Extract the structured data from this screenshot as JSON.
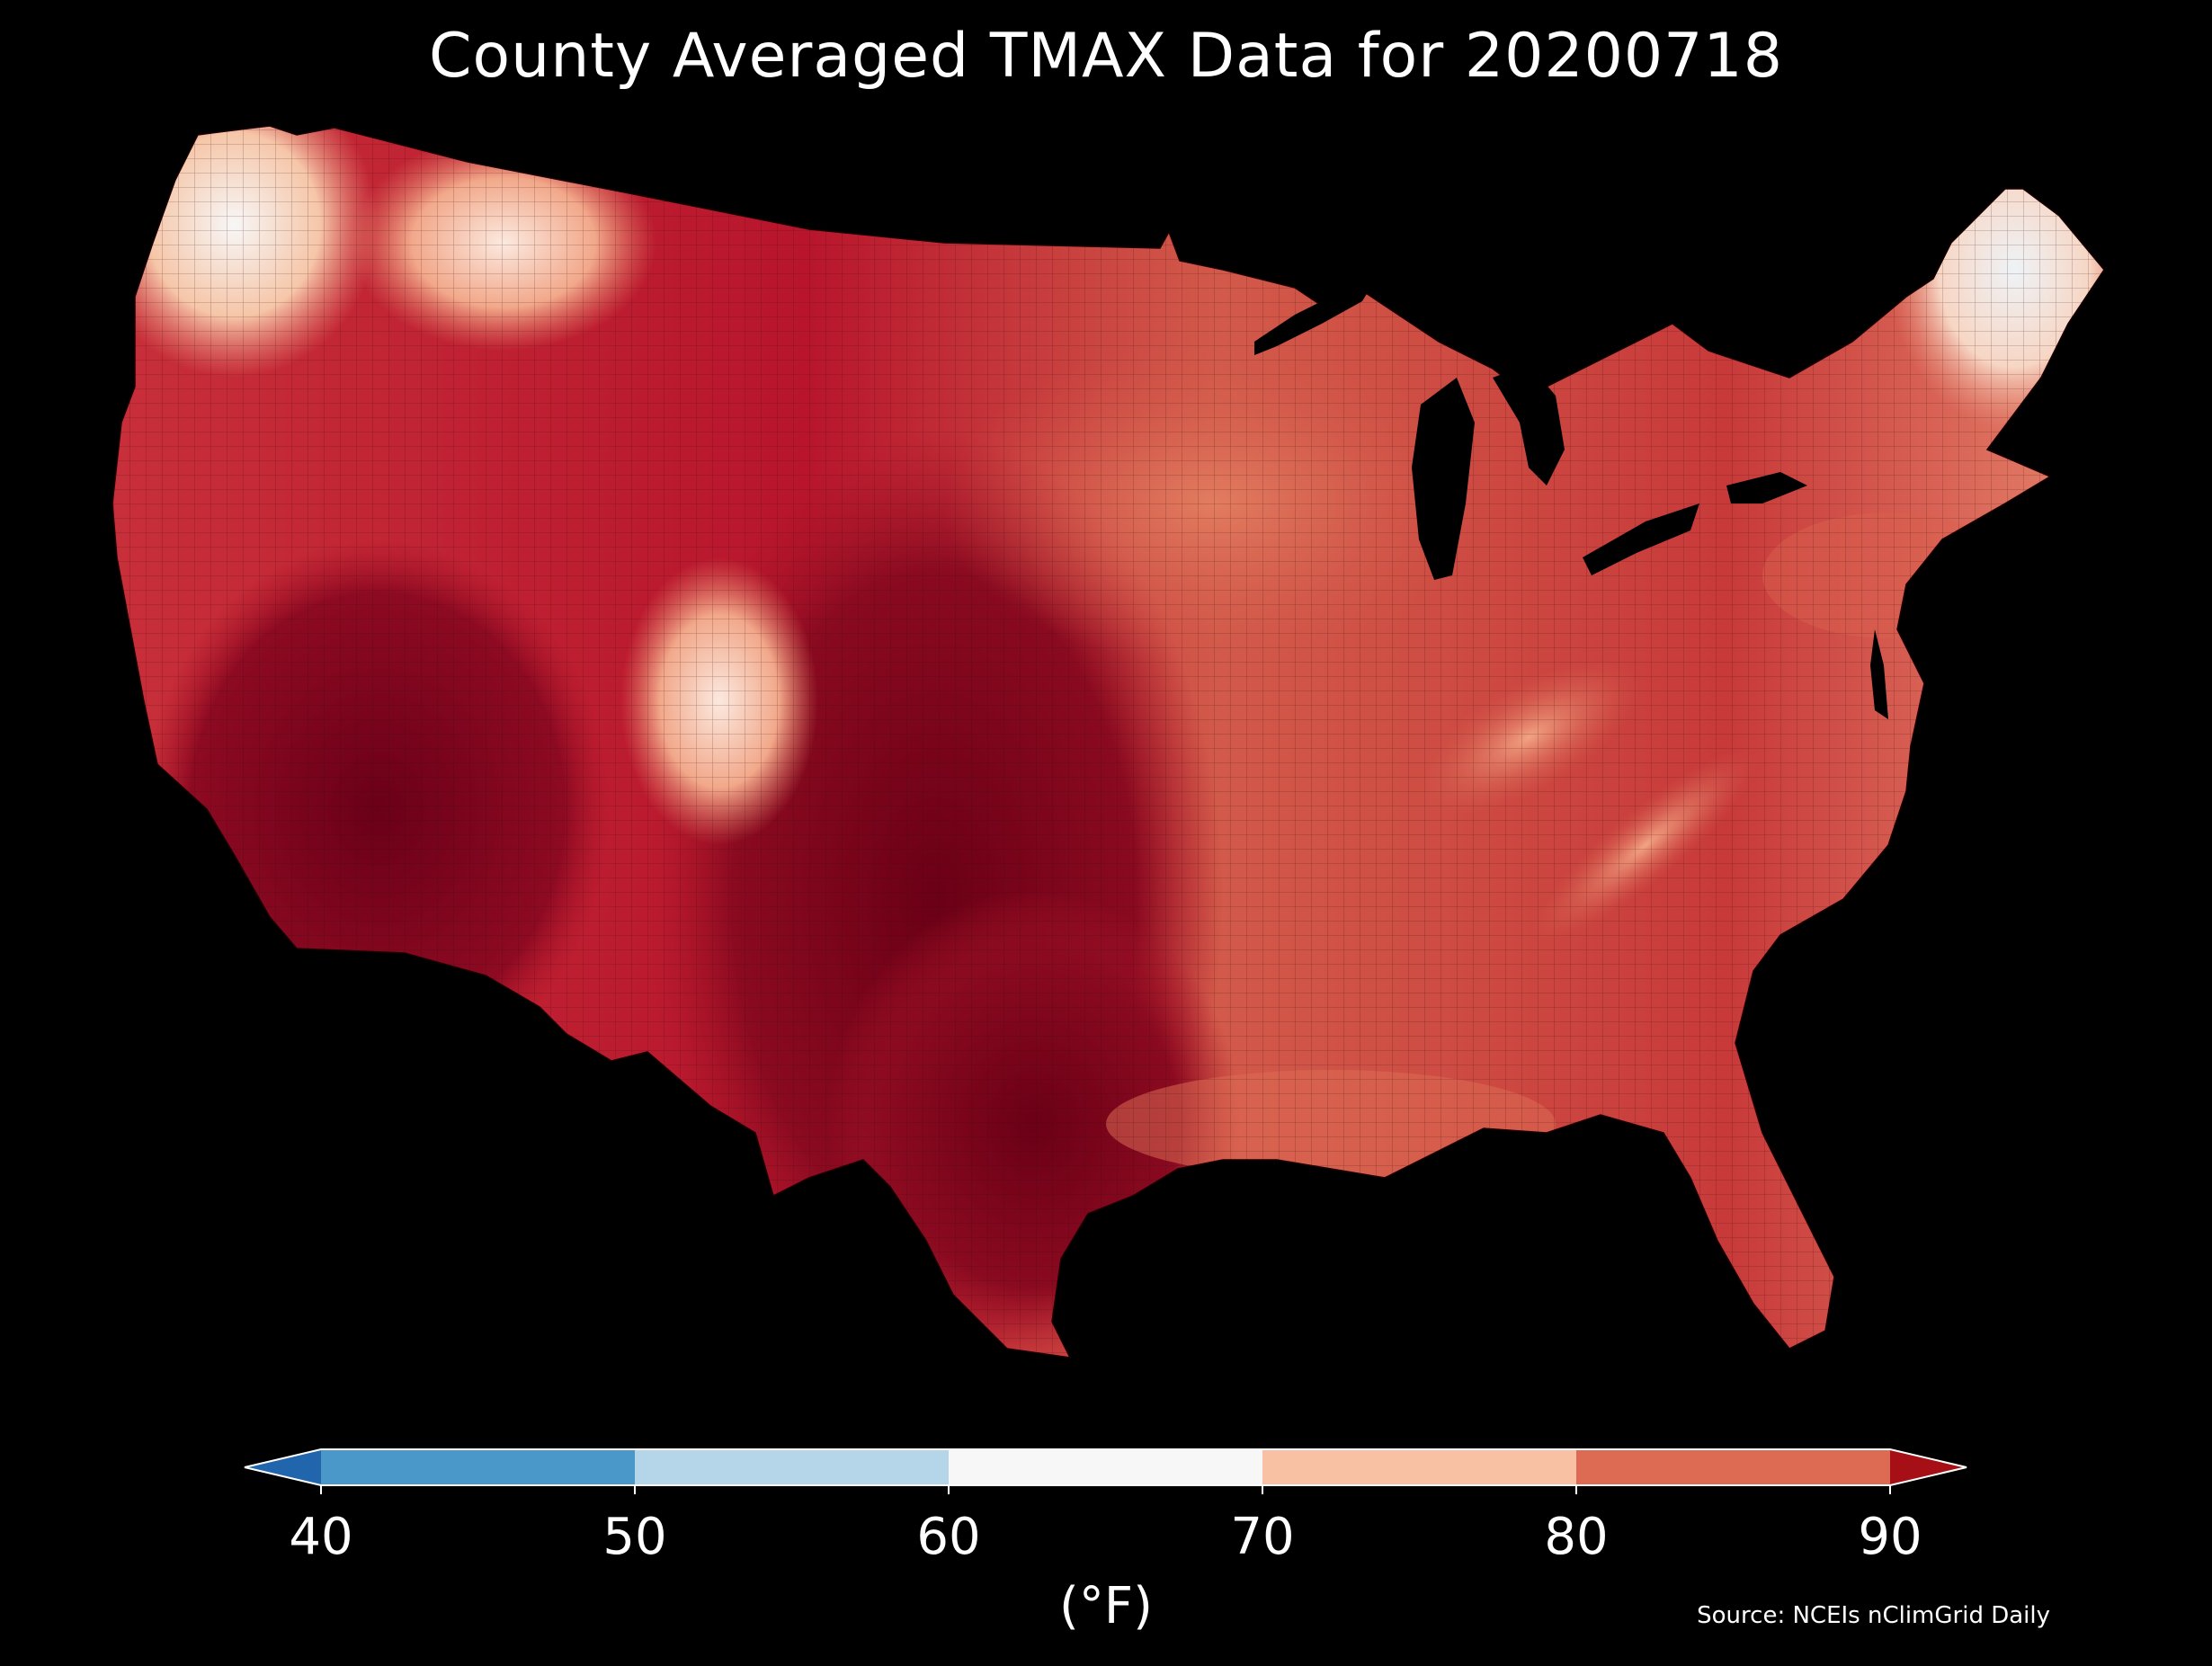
{
  "title": "County Averaged TMAX Data for 20200718",
  "source": "Source: NCEIs nClimGrid Daily",
  "colorbar": {
    "unit_label": "(°F)",
    "ticks": [
      "40",
      "50",
      "60",
      "70",
      "80",
      "90"
    ],
    "under_color": "#2166ac",
    "over_color": "#a50f15",
    "bins": [
      {
        "from": 40,
        "to": 50,
        "color": "#4a98c9"
      },
      {
        "from": 50,
        "to": 60,
        "color": "#b5d6e9"
      },
      {
        "from": 60,
        "to": 70,
        "color": "#f7f7f7"
      },
      {
        "from": 70,
        "to": 80,
        "color": "#f8c1a3"
      },
      {
        "from": 80,
        "to": 90,
        "color": "#dd6b54"
      }
    ]
  },
  "map_colors": {
    "background": "#000000",
    "lakes": "#000000",
    "county_border": "#2a0a0a"
  }
}
